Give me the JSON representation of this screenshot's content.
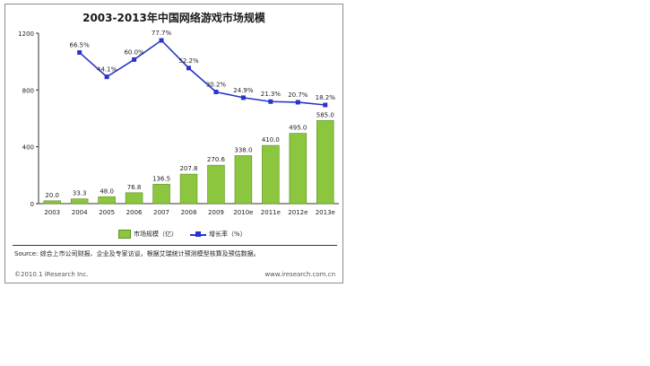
{
  "chart_data": {
    "type": "bar",
    "title": "2003-2013年中国网络游戏市场规模",
    "categories": [
      "2003",
      "2004",
      "2005",
      "2006",
      "2007",
      "2008",
      "2009",
      "2010e",
      "2011e",
      "2012e",
      "2013e"
    ],
    "series": [
      {
        "name": "市场规模（亿）",
        "type": "bar",
        "values": [
          20.0,
          33.3,
          48.0,
          76.8,
          136.5,
          207.8,
          270.6,
          338.0,
          410.0,
          495.0,
          585.0
        ],
        "labels": [
          "20.0",
          "33.3",
          "48.0",
          "76.8",
          "136.5",
          "207.8",
          "270.6",
          "338.0",
          "410.0",
          "495.0",
          "585.0"
        ]
      },
      {
        "name": "增长率（%）",
        "type": "line",
        "values": [
          null,
          66.5,
          44.1,
          60.0,
          77.7,
          52.2,
          30.2,
          24.9,
          21.3,
          20.7,
          18.2
        ],
        "labels": [
          "",
          "66.5%",
          "44.1%",
          "60.0%",
          "77.7%",
          "52.2%",
          "30.2%",
          "24.9%",
          "21.3%",
          "20.7%",
          "18.2%"
        ]
      }
    ],
    "y_ticks": [
      "0",
      "400",
      "800",
      "1200"
    ],
    "ylim": [
      0,
      1200
    ],
    "legend_placement": "bottom",
    "colors": {
      "bar": "#8cc63f",
      "bar_edge": "#5a8f1e",
      "line": "#2a34c8"
    }
  },
  "source_text": "Source:   综合上市公司财报、企业及专家访谈，根据艾瑞统计预测模型核算及预估数据。",
  "footer": {
    "left": "©2010.1 iResearch Inc.",
    "right": "www.iresearch.com.cn"
  }
}
